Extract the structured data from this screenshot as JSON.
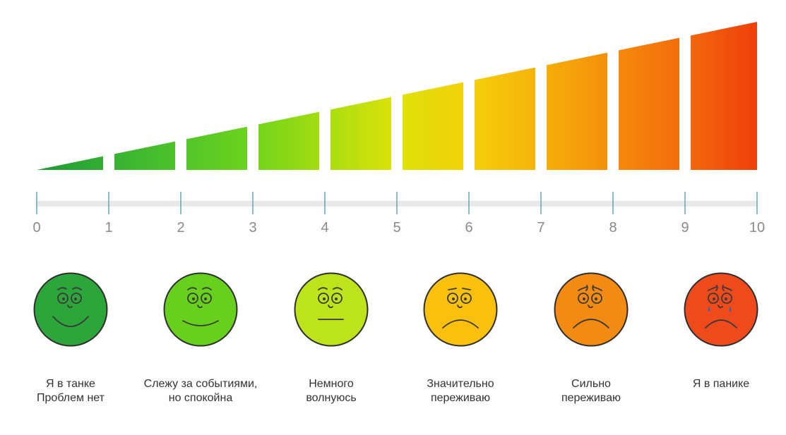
{
  "scale": {
    "ticks": [
      "0",
      "1",
      "2",
      "3",
      "4",
      "5",
      "6",
      "7",
      "8",
      "9",
      "10"
    ],
    "bar_colors": [
      "#1c9a33",
      "#35b033",
      "#50c42a",
      "#6fd41c",
      "#a6dd10",
      "#dde20a",
      "#f4d00a",
      "#f6b10a",
      "#f58c0b",
      "#f36a0c",
      "#ef3f0b"
    ],
    "values": [
      1,
      2,
      3,
      4,
      5,
      6,
      7,
      8,
      9,
      10
    ]
  },
  "moods": [
    {
      "level": 1,
      "icon": "happy-face-icon",
      "color": "#2ca53a",
      "line1": "Я в танке",
      "line2": "Проблем нет"
    },
    {
      "level": 2,
      "icon": "smiling-face-icon",
      "color": "#67d01d",
      "line1": "Слежу за событиями,",
      "line2": "но спокойна"
    },
    {
      "level": 3,
      "icon": "neutral-face-icon",
      "color": "#bde31a",
      "line1": "Немного",
      "line2": "волнуюсь"
    },
    {
      "level": 4,
      "icon": "sad-face-icon",
      "color": "#f9c00e",
      "line1": "Значительно",
      "line2": "переживаю"
    },
    {
      "level": 5,
      "icon": "worried-face-icon",
      "color": "#f38a12",
      "line1": "Сильно",
      "line2": "переживаю"
    },
    {
      "level": 6,
      "icon": "crying-face-icon",
      "color": "#ee4a1b",
      "line1": "Я в панике",
      "line2": ""
    }
  ]
}
